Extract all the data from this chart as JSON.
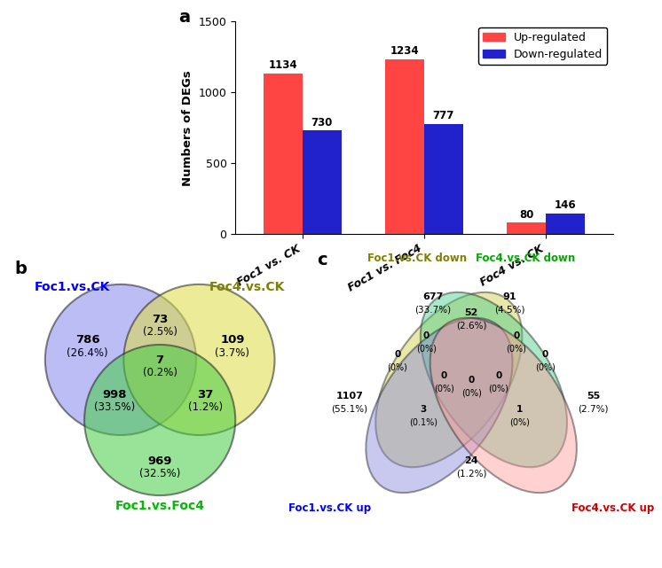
{
  "bar_categories": [
    "Foc1 vs. CK",
    "Foc1 vs. Foc4",
    "Foc4 vs. CK"
  ],
  "bar_up": [
    1134,
    1234,
    80
  ],
  "bar_down": [
    730,
    777,
    146
  ],
  "bar_color_up": "#FF4444",
  "bar_color_down": "#2222CC",
  "bar_ylabel": "Numbers of DEGs",
  "bar_ylim": [
    0,
    1500
  ],
  "bar_yticks": [
    0,
    500,
    1000,
    1500
  ],
  "legend_up": "Up-regulated",
  "legend_down": "Down-regulated",
  "panel_a_label": "a",
  "panel_b_label": "b",
  "panel_c_label": "c",
  "venn3_labels": [
    "Foc1.vs.CK",
    "Foc4.vs.CK",
    "Foc1.vs.Foc4"
  ],
  "venn3_label_colors": [
    "#0000FF",
    "#808000",
    "#00BB00"
  ],
  "venn3_regions": {
    "A_only": {
      "val": 786,
      "pct": "26.4%"
    },
    "B_only": {
      "val": 109,
      "pct": "3.7%"
    },
    "C_only": {
      "val": 969,
      "pct": "32.5%"
    },
    "AB": {
      "val": 73,
      "pct": "2.5%"
    },
    "AC": {
      "val": 998,
      "pct": "33.5%"
    },
    "BC": {
      "val": 37,
      "pct": "1.2%"
    },
    "ABC": {
      "val": 7,
      "pct": "0.2%"
    }
  },
  "venn3_colors": [
    "#8888EE",
    "#DDDD44",
    "#44CC44"
  ],
  "venn4_labels": [
    "Foc1.vs.CK down",
    "Foc4.vs.CK down",
    "Foc1.vs.CK up",
    "Foc4.vs.CK up"
  ],
  "venn4_label_colors": [
    "#808000",
    "#00AA00",
    "#0000FF",
    "#CC0000"
  ],
  "venn4_regions": {
    "A_only": {
      "val": 677,
      "pct": "33.7%"
    },
    "B_only": {
      "val": 91,
      "pct": "4.5%"
    },
    "C_only": {
      "val": 1107,
      "pct": "55.1%"
    },
    "D_only": {
      "val": 55,
      "pct": "2.7%"
    },
    "AB": {
      "val": 52,
      "pct": "2.6%"
    },
    "AC": {
      "val": 0,
      "pct": "0%"
    },
    "AD": {
      "val": 0,
      "pct": "0%"
    },
    "BC": {
      "val": 0,
      "pct": "0%"
    },
    "BD": {
      "val": 0,
      "pct": "0%"
    },
    "CD": {
      "val": 24,
      "pct": "1.2%"
    },
    "ABC": {
      "val": 0,
      "pct": "0%"
    },
    "ABD": {
      "val": 0,
      "pct": "0%"
    },
    "ACD": {
      "val": 3,
      "pct": "0.1%"
    },
    "BCD": {
      "val": 1,
      "pct": "0%"
    },
    "ABCD": {
      "val": 0,
      "pct": "0%"
    }
  }
}
